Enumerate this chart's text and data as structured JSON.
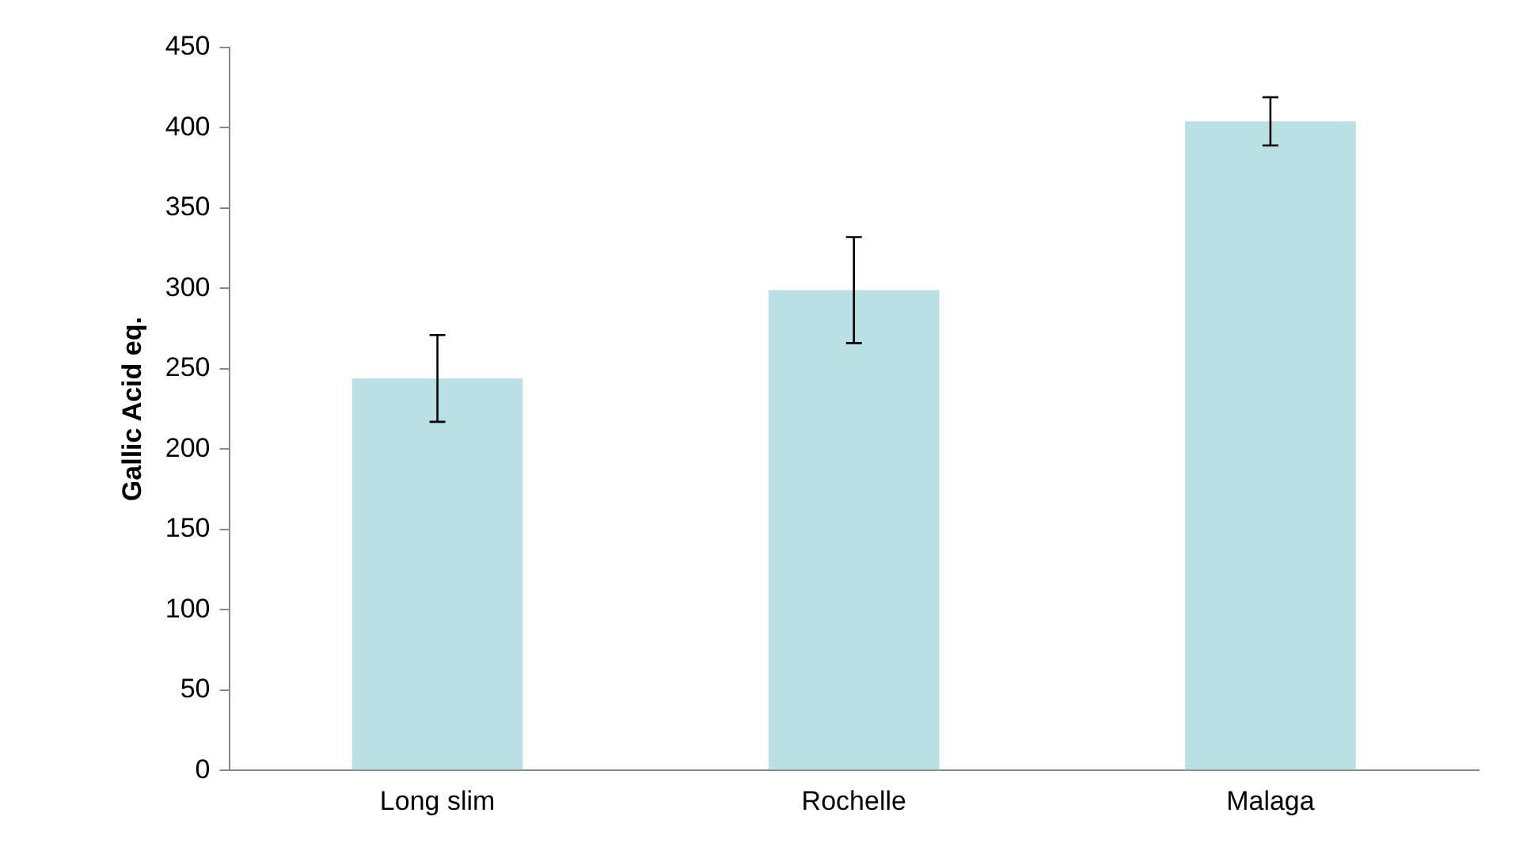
{
  "chart_data": {
    "type": "bar",
    "ylabel": "Gallic Acid eq.",
    "categories": [
      "Long slim",
      "Rochelle",
      "Malaga"
    ],
    "values": [
      244,
      299,
      404
    ],
    "errors": [
      27,
      33,
      15
    ],
    "color": "#b9e0e3",
    "ylim": [
      0,
      450
    ],
    "yticks": [
      0,
      50,
      100,
      150,
      200,
      250,
      300,
      350,
      400,
      450
    ],
    "grid": false,
    "legend": false
  }
}
